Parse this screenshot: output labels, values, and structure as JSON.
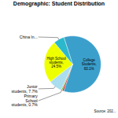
{
  "chart_data": {
    "type": "pie",
    "title": "Demographic: Student Distribution",
    "categories": [
      "College\nStudents,\n60.1%",
      null,
      "Primary\nSchool\nstudents, 0.7%",
      "Junior\nstudents, 7.7%",
      "High School\nstudents,\n24.5%",
      "China In..."
    ],
    "values": [
      60.1,
      0.9,
      0.7,
      7.7,
      24.5,
      6.1
    ],
    "colors": [
      "#3B9FCC",
      "#CC2222",
      "#77BB44",
      "#AADDEE",
      "#EEFF00",
      "#2BB8CC"
    ],
    "annotations": [
      "Source: 202..."
    ]
  }
}
